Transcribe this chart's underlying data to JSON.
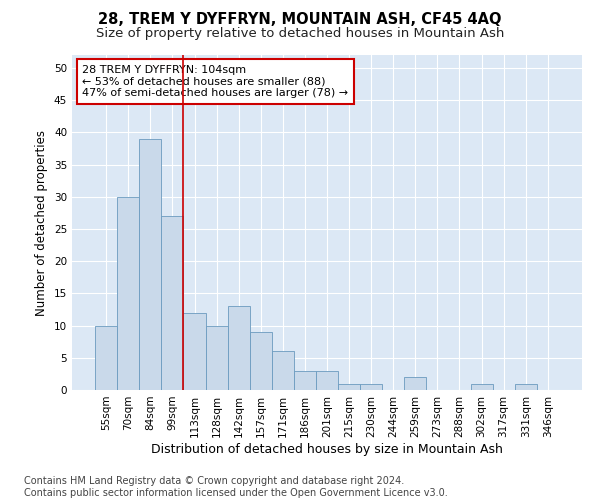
{
  "title": "28, TREM Y DYFFRYN, MOUNTAIN ASH, CF45 4AQ",
  "subtitle": "Size of property relative to detached houses in Mountain Ash",
  "xlabel": "Distribution of detached houses by size in Mountain Ash",
  "ylabel": "Number of detached properties",
  "bar_labels": [
    "55sqm",
    "70sqm",
    "84sqm",
    "99sqm",
    "113sqm",
    "128sqm",
    "142sqm",
    "157sqm",
    "171sqm",
    "186sqm",
    "201sqm",
    "215sqm",
    "230sqm",
    "244sqm",
    "259sqm",
    "273sqm",
    "288sqm",
    "302sqm",
    "317sqm",
    "331sqm",
    "346sqm"
  ],
  "bar_values": [
    10,
    30,
    39,
    27,
    12,
    10,
    13,
    9,
    6,
    3,
    3,
    1,
    1,
    0,
    2,
    0,
    0,
    1,
    0,
    1,
    0
  ],
  "bar_color": "#c9d9ea",
  "bar_edge_color": "#6a9abf",
  "vline_color": "#cc0000",
  "annotation_text": "28 TREM Y DYFFRYN: 104sqm\n← 53% of detached houses are smaller (88)\n47% of semi-detached houses are larger (78) →",
  "annotation_box_color": "#ffffff",
  "annotation_box_edge": "#cc0000",
  "ylim": [
    0,
    52
  ],
  "yticks": [
    0,
    5,
    10,
    15,
    20,
    25,
    30,
    35,
    40,
    45,
    50
  ],
  "footnote": "Contains HM Land Registry data © Crown copyright and database right 2024.\nContains public sector information licensed under the Open Government Licence v3.0.",
  "plot_bg_color": "#dce8f5",
  "title_fontsize": 10.5,
  "subtitle_fontsize": 9.5,
  "xlabel_fontsize": 9,
  "ylabel_fontsize": 8.5,
  "tick_fontsize": 7.5,
  "footnote_fontsize": 7,
  "annot_fontsize": 8
}
